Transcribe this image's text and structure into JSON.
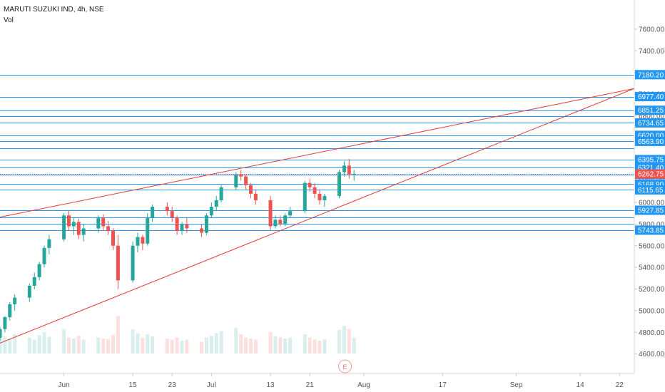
{
  "header": {
    "symbol_line": "MARUTI SUZUKI IND, 4h, NSE",
    "volume_label": "Vol"
  },
  "colors": {
    "up": "#26a69a",
    "down": "#ef5350",
    "hline": "#2196f3",
    "trendline": "#e53935",
    "label_bg": "#2196f3",
    "current_price": "#ef5350",
    "axis_text": "#555555"
  },
  "chart_data": {
    "type": "candlestick",
    "interval": "4h",
    "y_axis": {
      "range": [
        4420,
        7870
      ],
      "ticks": [
        4600,
        4800,
        5000,
        5200,
        5400,
        5600,
        5800,
        6000,
        6200,
        6400,
        6600,
        6800,
        7000,
        7200,
        7400,
        7600
      ]
    },
    "x_axis": {
      "start": "2020-05-19",
      "end": "2020-09-25",
      "ticks": [
        {
          "date": "2020-06-01",
          "label": "Jun"
        },
        {
          "date": "2020-06-15",
          "label": "15"
        },
        {
          "date": "2020-06-23",
          "label": "23"
        },
        {
          "date": "2020-07-01",
          "label": "Jul"
        },
        {
          "date": "2020-07-13",
          "label": "13"
        },
        {
          "date": "2020-07-21",
          "label": "21"
        },
        {
          "date": "2020-08-01",
          "label": "Aug"
        },
        {
          "date": "2020-08-17",
          "label": "17"
        },
        {
          "date": "2020-09-01",
          "label": "Sep"
        },
        {
          "date": "2020-09-14",
          "label": "14"
        },
        {
          "date": "2020-09-22",
          "label": "22"
        }
      ]
    },
    "horizontal_levels": [
      7180.2,
      6977.4,
      6851.25,
      6800.0,
      6734.65,
      6620.0,
      6563.9,
      6500.0,
      6395.75,
      6321.4,
      6258.65,
      6168.9,
      6115.65,
      5927.85,
      5865.0,
      5800.0,
      5743.85
    ],
    "price_labels": [
      "7180.20",
      "6977.40",
      "6851.25",
      "6734.65",
      "6620.00",
      "6563.90",
      "6395.75",
      "6321.40",
      "6258.65",
      "6168.90",
      "6115.65",
      "5927.85",
      "5743.85"
    ],
    "current_price": 6262.75,
    "current_price_label": "6262.75",
    "trendlines": [
      {
        "from": {
          "date": "2020-05-19",
          "price": 5864
        },
        "to": {
          "date": "2020-09-25",
          "price": 7052
        }
      },
      {
        "from": {
          "date": "2020-05-19",
          "price": 4700
        },
        "to": {
          "date": "2020-09-25",
          "price": 7052
        }
      }
    ],
    "candles": [
      [
        "2020-05-19",
        4750,
        4850,
        4720,
        4830
      ],
      [
        "2020-05-20",
        4830,
        4950,
        4800,
        4940
      ],
      [
        "2020-05-21",
        4940,
        5080,
        4910,
        5060
      ],
      [
        "2020-05-22",
        5060,
        5150,
        5000,
        5120
      ],
      [
        "2020-05-25",
        5120,
        5250,
        5080,
        5230
      ],
      [
        "2020-05-26",
        5230,
        5350,
        5200,
        5310
      ],
      [
        "2020-05-27",
        5310,
        5450,
        5280,
        5430
      ],
      [
        "2020-05-28",
        5430,
        5600,
        5400,
        5580
      ],
      [
        "2020-05-29",
        5580,
        5700,
        5520,
        5660
      ],
      [
        "2020-06-01",
        5660,
        5900,
        5640,
        5880
      ],
      [
        "2020-06-02",
        5880,
        5920,
        5740,
        5780
      ],
      [
        "2020-06-03",
        5780,
        5860,
        5700,
        5820
      ],
      [
        "2020-06-04",
        5820,
        5850,
        5660,
        5700
      ],
      [
        "2020-06-05",
        5700,
        5800,
        5640,
        5760
      ],
      [
        "2020-06-08",
        5760,
        5880,
        5720,
        5860
      ],
      [
        "2020-06-09",
        5860,
        5890,
        5740,
        5780
      ],
      [
        "2020-06-10",
        5780,
        5830,
        5700,
        5740
      ],
      [
        "2020-06-11",
        5740,
        5760,
        5560,
        5600
      ],
      [
        "2020-06-12",
        5600,
        5700,
        5200,
        5280
      ],
      [
        "2020-06-15",
        5280,
        5640,
        5260,
        5600
      ],
      [
        "2020-06-16",
        5600,
        5720,
        5540,
        5680
      ],
      [
        "2020-06-17",
        5680,
        5700,
        5560,
        5620
      ],
      [
        "2020-06-18",
        5620,
        5900,
        5600,
        5860
      ],
      [
        "2020-06-19",
        5860,
        5980,
        5820,
        5960
      ],
      [
        "2020-06-22",
        5960,
        6000,
        5880,
        5920
      ],
      [
        "2020-06-23",
        5920,
        5960,
        5820,
        5860
      ],
      [
        "2020-06-24",
        5860,
        5880,
        5700,
        5740
      ],
      [
        "2020-06-25",
        5740,
        5820,
        5700,
        5800
      ],
      [
        "2020-06-26",
        5800,
        5860,
        5720,
        5760
      ],
      [
        "2020-06-29",
        5760,
        5800,
        5680,
        5720
      ],
      [
        "2020-06-30",
        5720,
        5900,
        5700,
        5880
      ],
      [
        "2020-07-01",
        5880,
        6000,
        5860,
        5960
      ],
      [
        "2020-07-02",
        5960,
        6060,
        5920,
        6020
      ],
      [
        "2020-07-03",
        6020,
        6160,
        6000,
        6140
      ],
      [
        "2020-07-06",
        6140,
        6280,
        6120,
        6260
      ],
      [
        "2020-07-07",
        6260,
        6300,
        6200,
        6240
      ],
      [
        "2020-07-08",
        6240,
        6260,
        6120,
        6160
      ],
      [
        "2020-07-09",
        6160,
        6180,
        6040,
        6080
      ],
      [
        "2020-07-10",
        6080,
        6120,
        5980,
        6020
      ],
      [
        "2020-07-13",
        6020,
        6060,
        5740,
        5780
      ],
      [
        "2020-07-14",
        5780,
        5880,
        5760,
        5840
      ],
      [
        "2020-07-15",
        5840,
        5880,
        5780,
        5800
      ],
      [
        "2020-07-16",
        5800,
        5900,
        5780,
        5880
      ],
      [
        "2020-07-17",
        5880,
        5960,
        5860,
        5920
      ],
      [
        "2020-07-20",
        5920,
        6200,
        5900,
        6180
      ],
      [
        "2020-07-21",
        6180,
        6220,
        6100,
        6140
      ],
      [
        "2020-07-22",
        6140,
        6180,
        6040,
        6080
      ],
      [
        "2020-07-23",
        6080,
        6120,
        5980,
        6020
      ],
      [
        "2020-07-24",
        6020,
        6080,
        5960,
        6060
      ],
      [
        "2020-07-27",
        6060,
        6300,
        6040,
        6280
      ],
      [
        "2020-07-28",
        6280,
        6380,
        6240,
        6340
      ],
      [
        "2020-07-29",
        6340,
        6400,
        6220,
        6260
      ],
      [
        "2020-07-30",
        6260,
        6300,
        6200,
        6262.75
      ]
    ],
    "volume": [
      0.38,
      0.32,
      0.28,
      0.36,
      0.3,
      0.26,
      0.34,
      0.4,
      0.31,
      0.46,
      0.3,
      0.28,
      0.33,
      0.26,
      0.3,
      0.28,
      0.27,
      0.35,
      0.7,
      0.45,
      0.38,
      0.3,
      0.36,
      0.32,
      0.28,
      0.26,
      0.3,
      0.24,
      0.26,
      0.22,
      0.3,
      0.33,
      0.38,
      0.42,
      0.48,
      0.36,
      0.3,
      0.28,
      0.26,
      0.4,
      0.32,
      0.3,
      0.28,
      0.3,
      0.36,
      0.3,
      0.26,
      0.24,
      0.26,
      0.44,
      0.52,
      0.46,
      0.3
    ],
    "event_marker": {
      "date": "2020-07-27",
      "label": "E"
    }
  }
}
